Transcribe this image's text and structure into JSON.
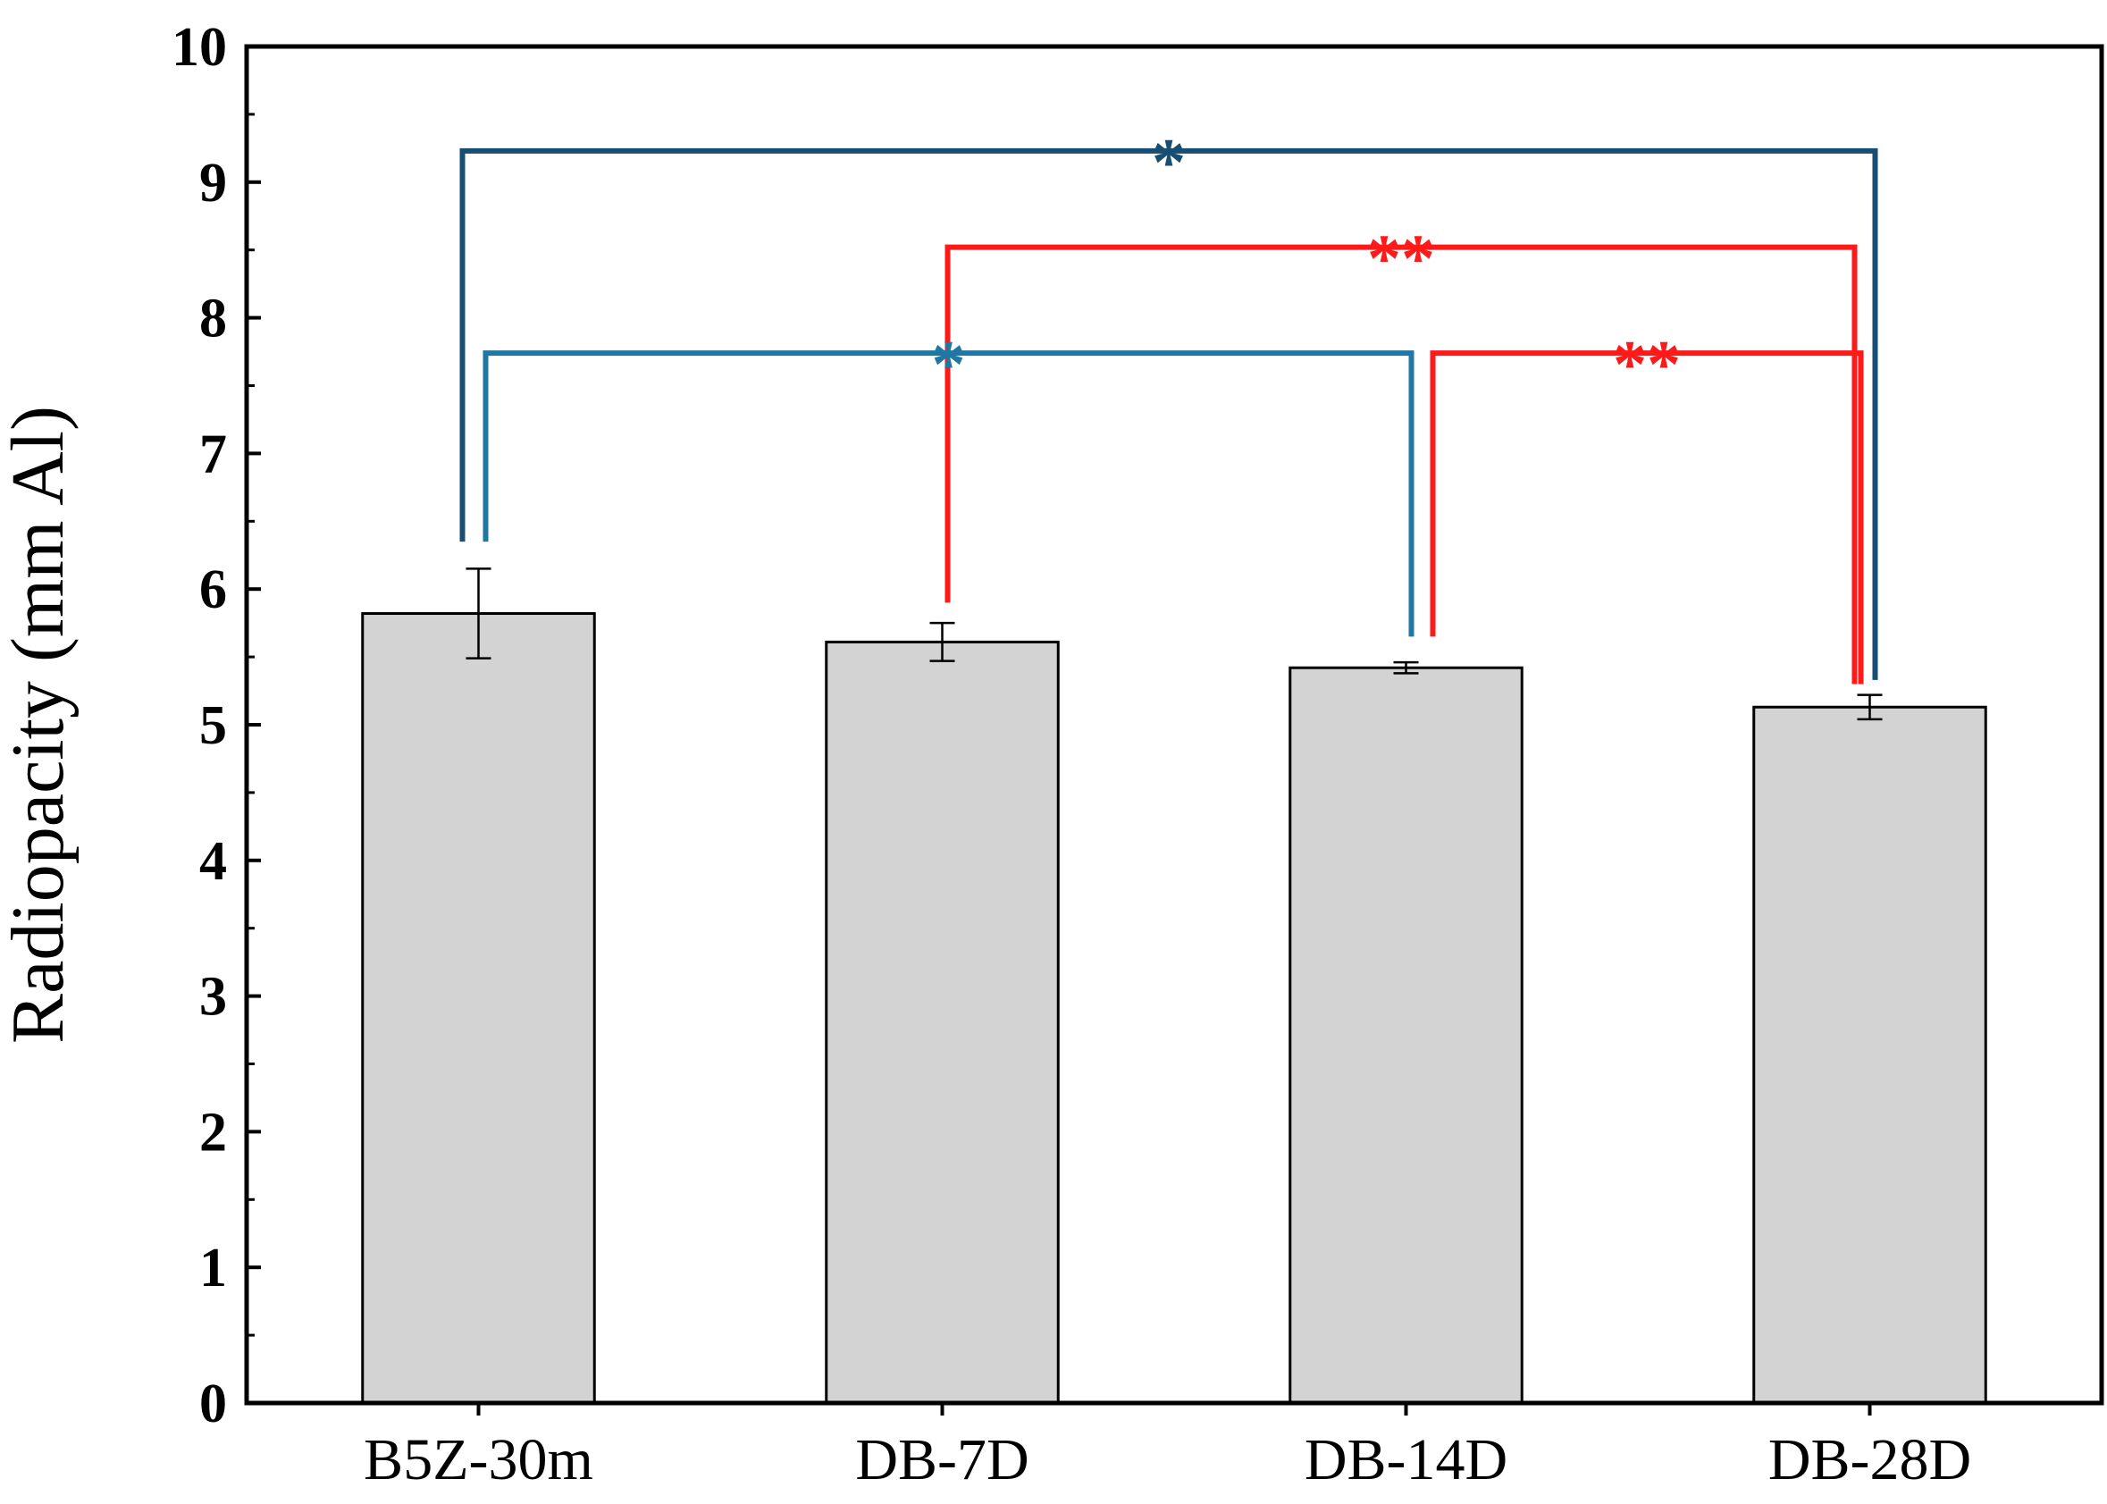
{
  "chart_data": {
    "type": "bar",
    "title": "",
    "xlabel": "",
    "ylabel": "Radiopacity (mm Al)",
    "ylim": [
      0,
      10
    ],
    "yticks": [
      0,
      1,
      2,
      3,
      4,
      5,
      6,
      7,
      8,
      9,
      10
    ],
    "yticks_minor_step": 0.5,
    "grid": false,
    "categories": [
      "B5Z-30m",
      "DB-7D",
      "DB-14D",
      "DB-28D"
    ],
    "series": [
      {
        "name": "Radiopacity",
        "values": [
          5.82,
          5.61,
          5.42,
          5.13
        ],
        "error": [
          0.33,
          0.14,
          0.04,
          0.09
        ],
        "color": "#d3d3d3"
      }
    ],
    "annotations": [
      {
        "from": "B5Z-30m",
        "to": "DB-28D",
        "label": "*",
        "color": "#174e72",
        "bracket_y": 9.23,
        "left_end_y": 6.35,
        "right_end_y": 5.33
      },
      {
        "from": "DB-7D",
        "to": "DB-28D",
        "label": "**",
        "color": "#ff1a1a",
        "bracket_y": 8.52,
        "left_end_y": 5.9,
        "right_end_y": 5.3
      },
      {
        "from": "B5Z-30m",
        "to": "DB-14D",
        "label": "*",
        "color": "#1f78a4",
        "bracket_y": 7.74,
        "left_end_y": 6.35,
        "right_end_y": 5.65
      },
      {
        "from": "DB-14D",
        "to": "DB-28D",
        "label": "**",
        "color": "#ff1a1a",
        "bracket_y": 7.74,
        "left_end_y": 5.65,
        "right_end_y": 5.3
      }
    ]
  }
}
